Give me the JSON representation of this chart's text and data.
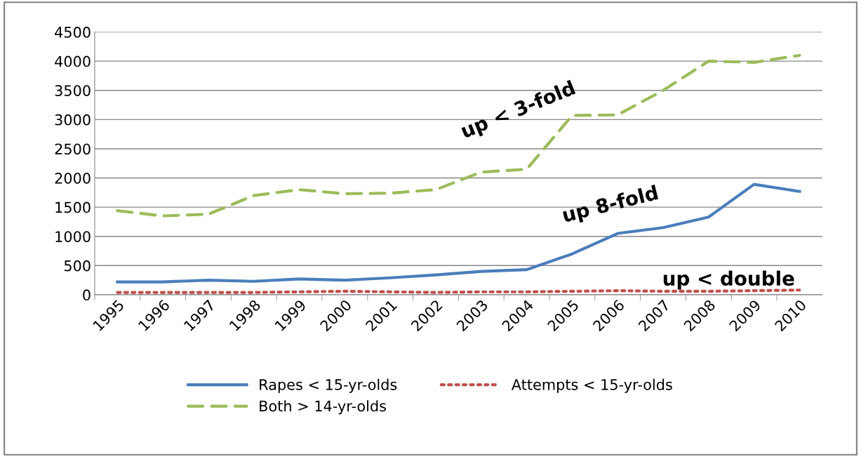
{
  "chart_data": {
    "type": "line",
    "categories": [
      "1995",
      "1996",
      "1997",
      "1998",
      "1999",
      "2000",
      "2001",
      "2002",
      "2003",
      "2004",
      "2005",
      "2006",
      "2007",
      "2008",
      "2009",
      "2010"
    ],
    "series": [
      {
        "name": "Rapes < 15-yr-olds",
        "color": "#4a7ebb",
        "line_style": "solid",
        "values": [
          220,
          220,
          250,
          230,
          270,
          250,
          290,
          340,
          400,
          430,
          700,
          1050,
          1150,
          1330,
          1890,
          1770
        ]
      },
      {
        "name": "Attempts < 15-yr-olds",
        "color": "#c0504d",
        "line_style": "dotted",
        "values": [
          40,
          40,
          40,
          40,
          50,
          60,
          50,
          40,
          50,
          50,
          60,
          70,
          60,
          60,
          70,
          80
        ]
      },
      {
        "name": "Both > 14-yr-olds",
        "color": "#9bbb59",
        "line_style": "dashed",
        "values": [
          1440,
          1350,
          1380,
          1700,
          1800,
          1730,
          1740,
          1800,
          2100,
          2150,
          3070,
          3080,
          3500,
          4000,
          3980,
          4100
        ]
      }
    ],
    "annotations": [
      "up < 3-fold",
      "up 8-fold",
      "up < double"
    ],
    "ylim": [
      0,
      4500
    ],
    "yticks": [
      0,
      500,
      1000,
      1500,
      2000,
      2500,
      3000,
      3500,
      4000,
      4500
    ],
    "grid": "y",
    "legend": "bottom",
    "marker": "none"
  }
}
